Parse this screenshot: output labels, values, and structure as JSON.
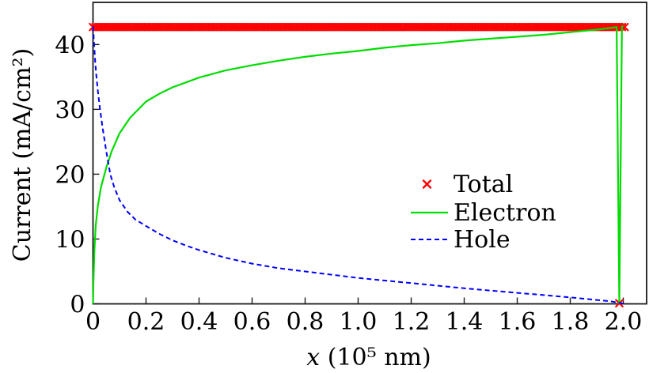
{
  "figure": {
    "background": "#ffffff"
  },
  "chart_data": {
    "type": "line",
    "title": "",
    "xlabel": "x (10⁵ nm)",
    "xlabel_variable": "x",
    "xlabel_rest": " (10⁵ nm)",
    "ylabel": "Current (mA/cm²)",
    "xlim": [
      0,
      2.088
    ],
    "ylim": [
      0,
      46.5
    ],
    "xticks": [
      0,
      0.2,
      0.4,
      0.6,
      0.8,
      1.0,
      1.2,
      1.4,
      1.6,
      1.8,
      2.0
    ],
    "xtick_labels": [
      "0",
      "0.2",
      "0.4",
      "0.6",
      "0.8",
      "1.0",
      "1.2",
      "1.4",
      "1.6",
      "1.8",
      "2.0"
    ],
    "yticks": [
      0,
      10,
      20,
      30,
      40
    ],
    "ytick_labels": [
      "0",
      "10",
      "20",
      "30",
      "40"
    ],
    "grid": false,
    "legend_position": "center-right",
    "frame_color": "#1a1a1a",
    "series": [
      {
        "name": "Total",
        "style": "markers",
        "marker": "x",
        "color": "#ff0000",
        "marker_size": 4.2,
        "band": {
          "y": 42.7,
          "x_start": 0,
          "x_end": 2.005,
          "count": 200
        },
        "extra_points": [
          [
            1.985,
            0.1
          ]
        ]
      },
      {
        "name": "Electron",
        "style": "solid",
        "color": "#00dd00",
        "points": [
          [
            0,
            0
          ],
          [
            0.002,
            4
          ],
          [
            0.005,
            8
          ],
          [
            0.01,
            12
          ],
          [
            0.018,
            15
          ],
          [
            0.03,
            18
          ],
          [
            0.05,
            21
          ],
          [
            0.07,
            23.5
          ],
          [
            0.1,
            26.3
          ],
          [
            0.14,
            28.7
          ],
          [
            0.2,
            31.2
          ],
          [
            0.25,
            32.4
          ],
          [
            0.3,
            33.4
          ],
          [
            0.4,
            34.9
          ],
          [
            0.5,
            36.0
          ],
          [
            0.6,
            36.8
          ],
          [
            0.7,
            37.5
          ],
          [
            0.8,
            38.1
          ],
          [
            0.9,
            38.6
          ],
          [
            1.0,
            39.0
          ],
          [
            1.1,
            39.5
          ],
          [
            1.2,
            39.9
          ],
          [
            1.3,
            40.2
          ],
          [
            1.4,
            40.6
          ],
          [
            1.5,
            40.9
          ],
          [
            1.6,
            41.2
          ],
          [
            1.7,
            41.5
          ],
          [
            1.8,
            41.9
          ],
          [
            1.9,
            42.3
          ],
          [
            1.96,
            42.6
          ],
          [
            1.975,
            42.7
          ],
          [
            1.985,
            0.1
          ],
          [
            1.995,
            42.8
          ],
          [
            2.0,
            42.8
          ]
        ]
      },
      {
        "name": "Hole",
        "style": "dashed",
        "color": "#0000ff",
        "points": [
          [
            0,
            42.8
          ],
          [
            0.002,
            41.5
          ],
          [
            0.005,
            39.5
          ],
          [
            0.008,
            37.5
          ],
          [
            0.012,
            35.5
          ],
          [
            0.018,
            33
          ],
          [
            0.025,
            30.5
          ],
          [
            0.035,
            27.5
          ],
          [
            0.05,
            23.5
          ],
          [
            0.065,
            20
          ],
          [
            0.08,
            18
          ],
          [
            0.1,
            16
          ],
          [
            0.13,
            14.2
          ],
          [
            0.16,
            13
          ],
          [
            0.2,
            12
          ],
          [
            0.25,
            10.8
          ],
          [
            0.3,
            9.8
          ],
          [
            0.35,
            9.0
          ],
          [
            0.4,
            8.3
          ],
          [
            0.5,
            7.1
          ],
          [
            0.6,
            6.2
          ],
          [
            0.7,
            5.5
          ],
          [
            0.8,
            5.0
          ],
          [
            0.9,
            4.5
          ],
          [
            1.0,
            4.0
          ],
          [
            1.1,
            3.6
          ],
          [
            1.2,
            3.2
          ],
          [
            1.3,
            2.8
          ],
          [
            1.4,
            2.4
          ],
          [
            1.5,
            2.05
          ],
          [
            1.6,
            1.7
          ],
          [
            1.7,
            1.35
          ],
          [
            1.8,
            1.0
          ],
          [
            1.9,
            0.6
          ],
          [
            1.95,
            0.4
          ],
          [
            2.0,
            0.05
          ]
        ]
      }
    ]
  }
}
